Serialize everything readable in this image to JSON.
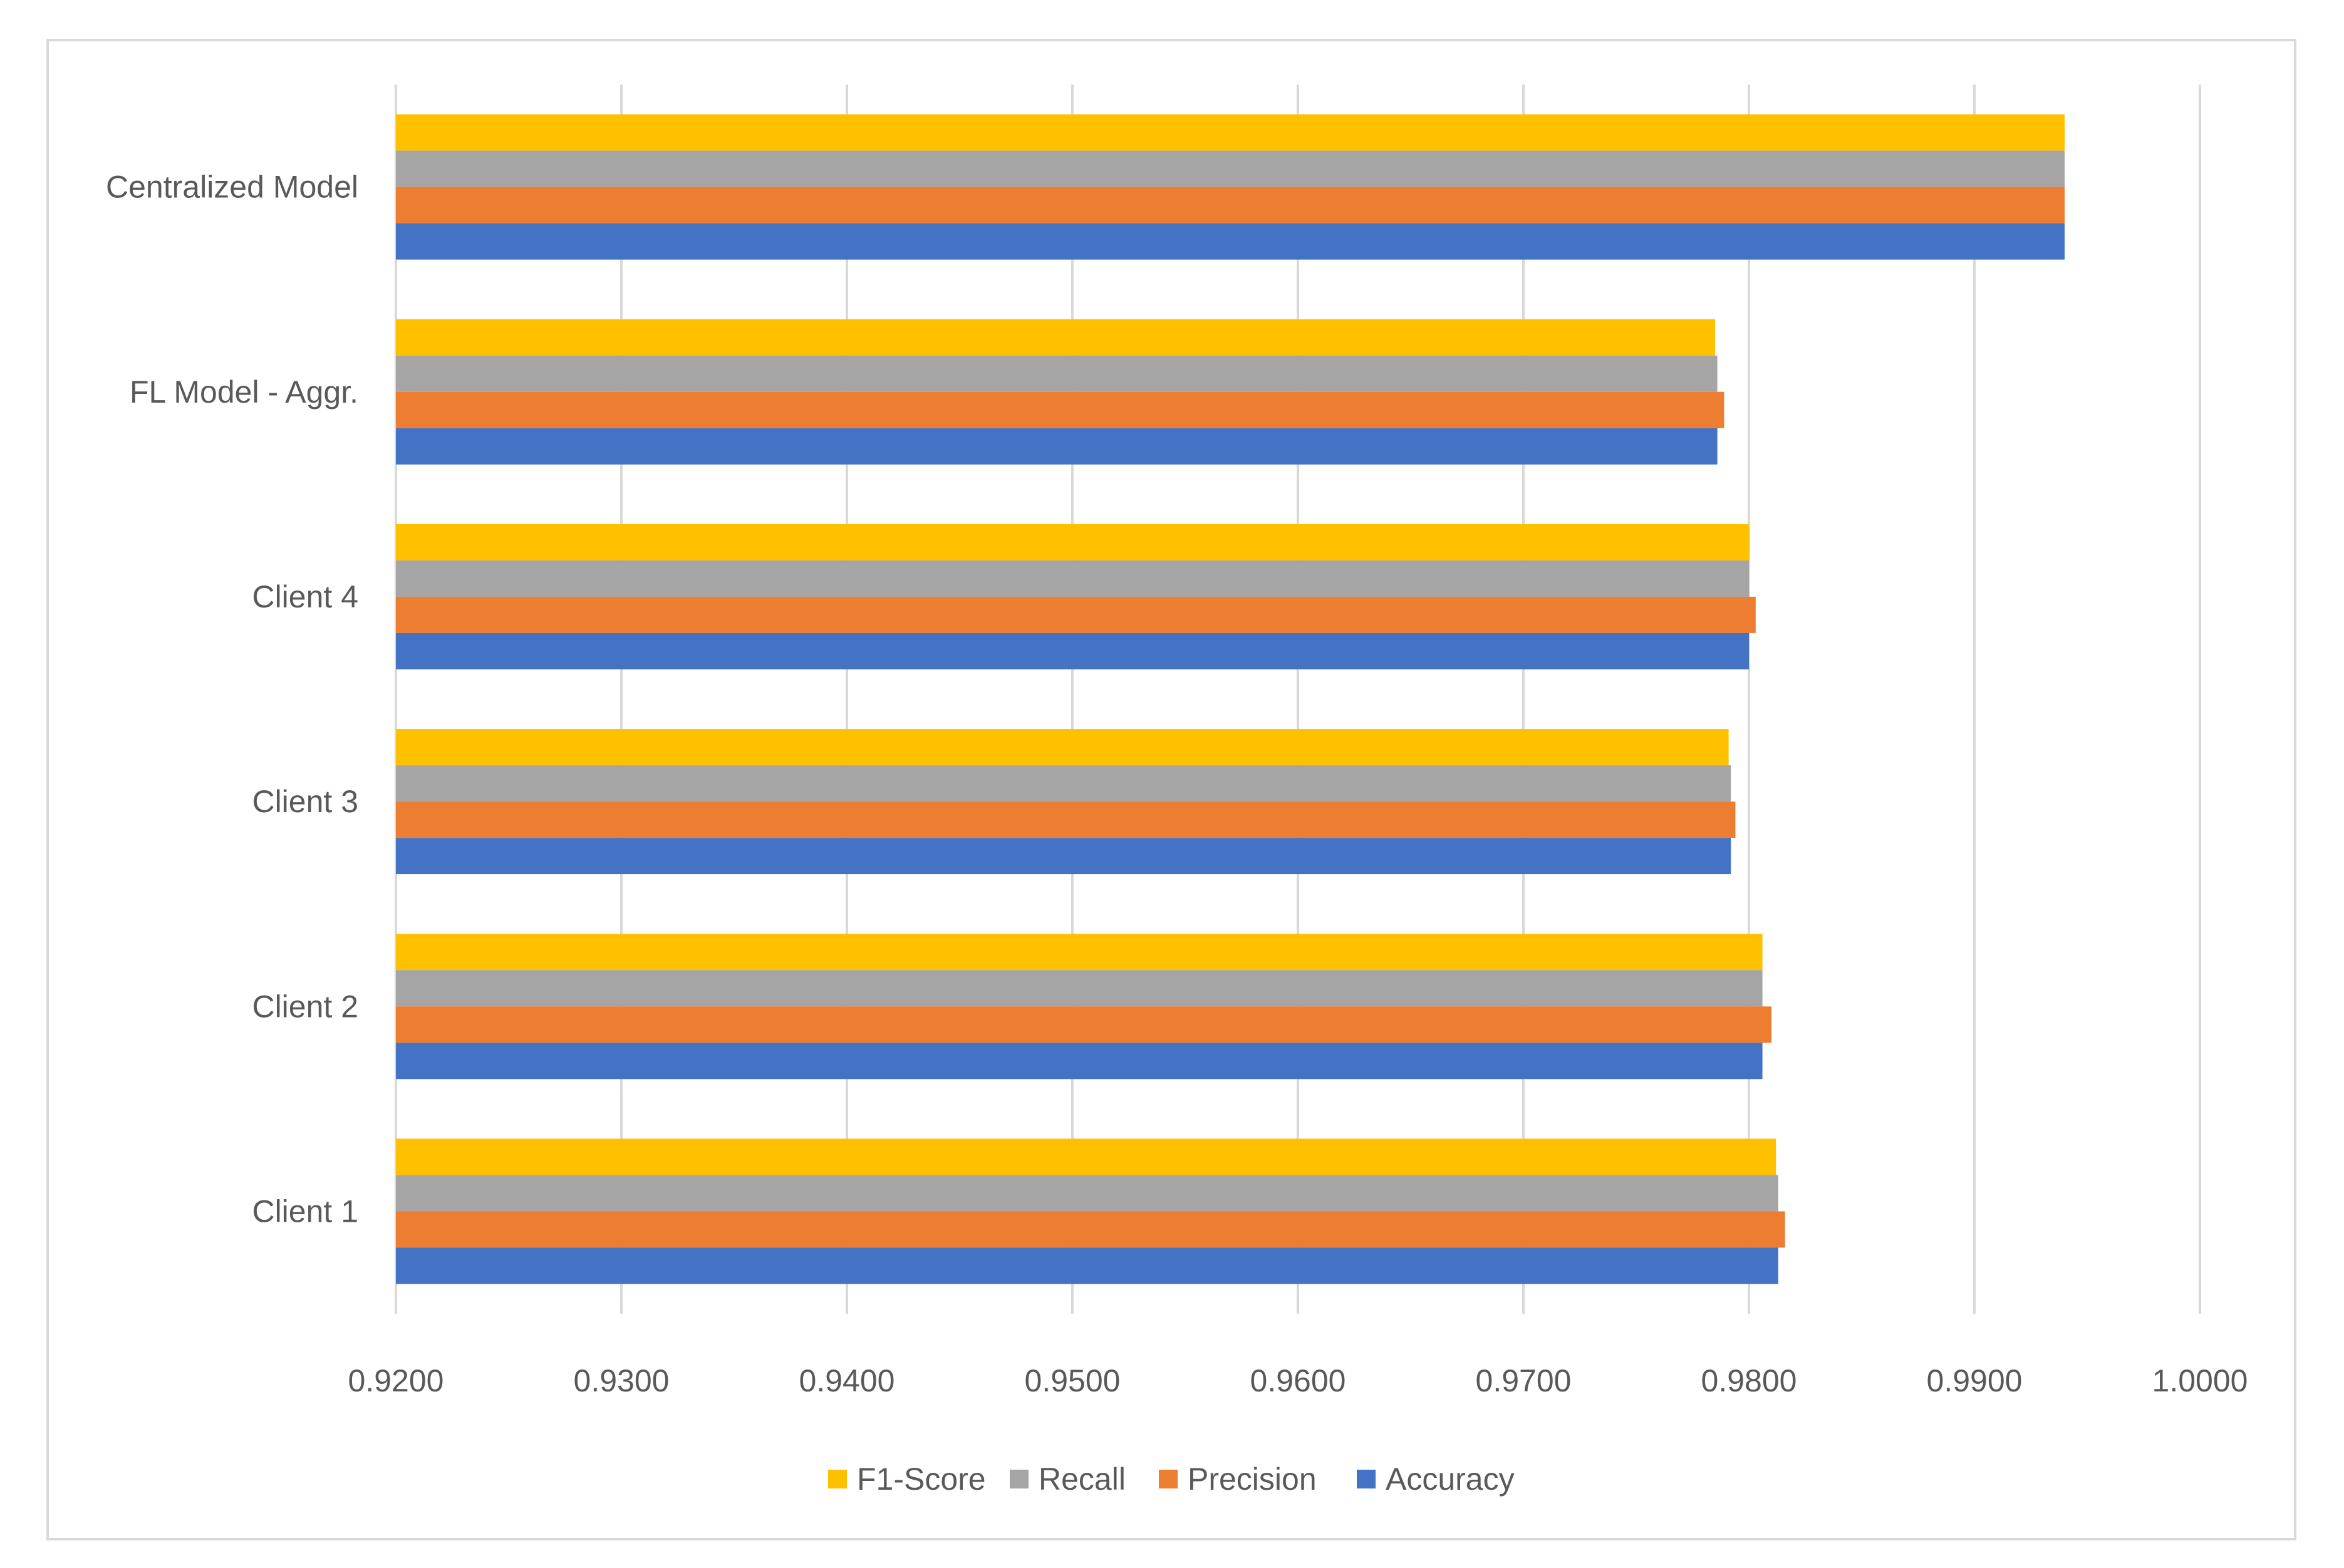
{
  "chart_data": {
    "type": "bar",
    "orientation": "horizontal",
    "categories": [
      "Centralized Model",
      "FL Model - Aggr.",
      "Client 4",
      "Client 3",
      "Client 2",
      "Client 1"
    ],
    "series": [
      {
        "name": "F1-Score",
        "color": "#FFC000",
        "values": [
          0.994,
          0.9785,
          0.98,
          0.9791,
          0.9806,
          0.9812
        ]
      },
      {
        "name": "Recall",
        "color": "#A5A5A5",
        "values": [
          0.994,
          0.9786,
          0.98,
          0.9792,
          0.9806,
          0.9813
        ]
      },
      {
        "name": "Precision",
        "color": "#ED7D31",
        "values": [
          0.994,
          0.9789,
          0.9803,
          0.9794,
          0.981,
          0.9816
        ]
      },
      {
        "name": "Accuracy",
        "color": "#4472C4",
        "values": [
          0.994,
          0.9786,
          0.98,
          0.9792,
          0.9806,
          0.9813
        ]
      }
    ],
    "xlim": [
      0.92,
      1.0
    ],
    "xticks": [
      "0.9200",
      "0.9300",
      "0.9400",
      "0.9500",
      "0.9600",
      "0.9700",
      "0.9800",
      "0.9900",
      "1.0000"
    ],
    "grid": true,
    "legend_position": "bottom",
    "gridline_color": "#d9d9d9"
  }
}
